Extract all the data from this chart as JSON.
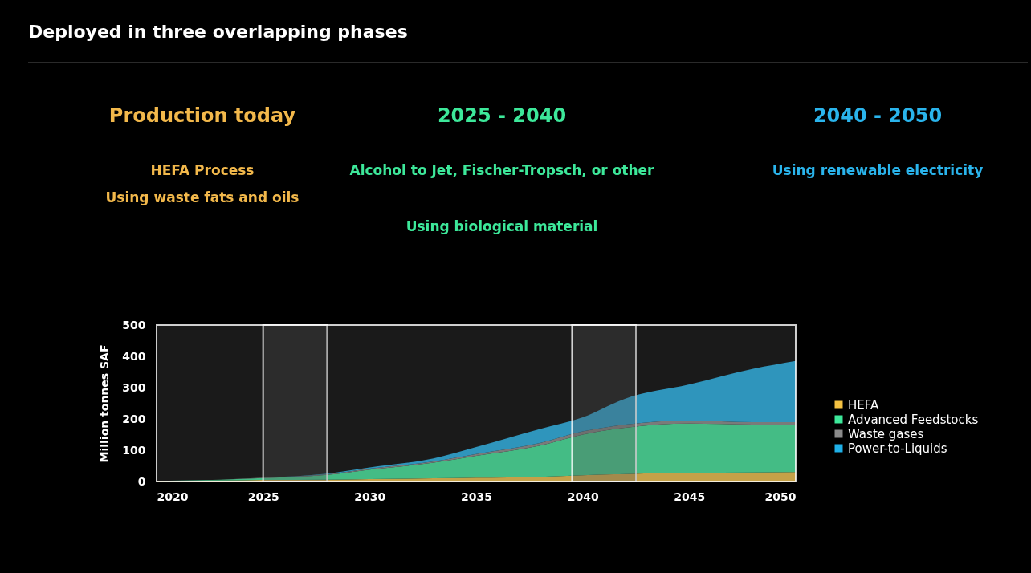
{
  "chart_data": {
    "type": "area",
    "title": "Deployed in three overlapping phases",
    "ylabel": "Million tonnes SAF",
    "stacked": true,
    "grid": false,
    "legend": "right",
    "marker": "none",
    "x": [
      2020,
      2023,
      2025,
      2028,
      2030,
      2033,
      2035,
      2038,
      2040,
      2042,
      2045,
      2048,
      2050
    ],
    "xlim": [
      2020,
      2050
    ],
    "xticks": [
      2020,
      2025,
      2030,
      2035,
      2040,
      2045,
      2050
    ],
    "ylim": [
      0,
      500
    ],
    "yticks": [
      0,
      100,
      200,
      300,
      400,
      500
    ],
    "series": [
      {
        "name": "HEFA",
        "color": "#f5c242",
        "values": [
          2,
          3,
          5,
          6,
          8,
          10,
          12,
          15,
          20,
          24,
          28,
          29,
          30
        ]
      },
      {
        "name": "Advanced Feedstocks",
        "color": "#3de89a",
        "values": [
          0,
          3,
          6,
          15,
          30,
          50,
          70,
          100,
          130,
          148,
          157,
          153,
          152
        ]
      },
      {
        "name": "Waste gases",
        "color": "#8a8a8a",
        "values": [
          0,
          0,
          1,
          2,
          3,
          4,
          6,
          8,
          10,
          10,
          10,
          8,
          8
        ]
      },
      {
        "name": "Power-to-Liquids",
        "color": "#1fb0e8",
        "values": [
          0,
          0,
          0,
          2,
          4,
          10,
          22,
          45,
          45,
          83,
          115,
          170,
          195
        ]
      }
    ],
    "bands": [
      {
        "axis": "x",
        "from": 2020,
        "to": 2028,
        "color": "#ffffff"
      },
      {
        "axis": "x",
        "from": 2025,
        "to": 2042.5,
        "color": "#ffffff"
      },
      {
        "axis": "x",
        "from": 2039.5,
        "to": 2050,
        "color": "#ffffff"
      }
    ],
    "annotations": [
      "Production today",
      "HEFA Process",
      "Using waste fats and oils",
      "2025 - 2040",
      "Alcohol to Jet, Fischer-Tropsch, or other",
      "Using biological material",
      "2040 - 2050",
      "Using renewable electricity"
    ]
  }
}
